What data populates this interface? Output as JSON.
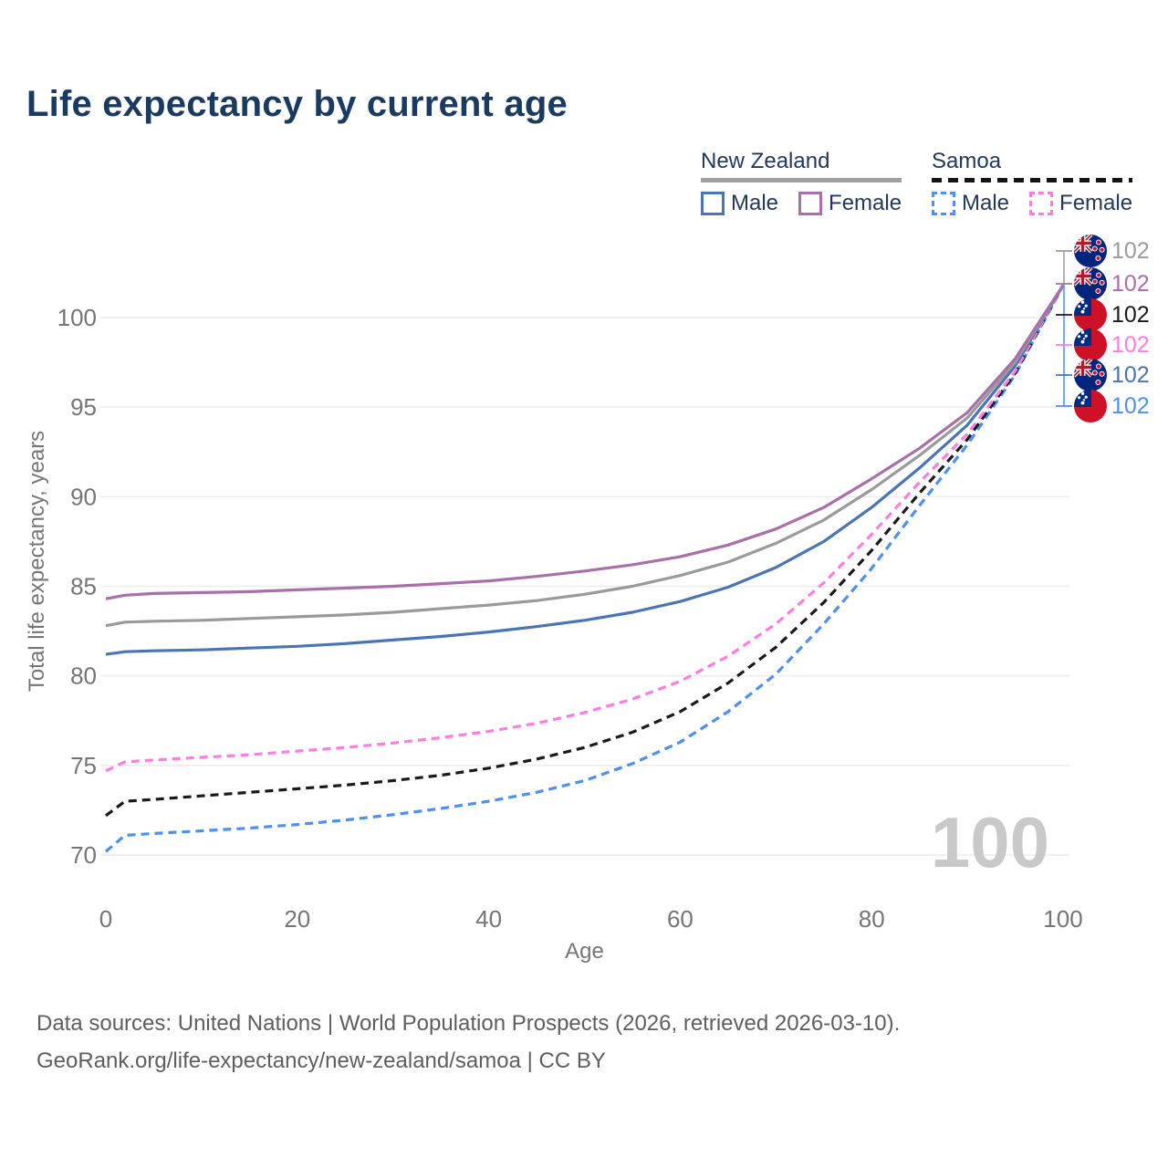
{
  "header": {
    "title": "Life expectancy by current age"
  },
  "legend": {
    "new_zealand": {
      "title": "New Zealand",
      "male": "Male",
      "female": "Female"
    },
    "samoa": {
      "title": "Samoa",
      "male": "Male",
      "female": "Female"
    }
  },
  "colors": {
    "title": "#1b3a5f",
    "axis_text": "#757575",
    "grid": "#ececec",
    "watermark": "#c9c9c9",
    "nz_male": "#4a74b4",
    "nz_female": "#a96fa9",
    "nz_all": "#9a9a9a",
    "samoa_male": "#4d8ff2",
    "samoa_female": "#ff7ddf",
    "samoa_all": "#1a1a1a",
    "nz_underline": "#a0a0a0",
    "samoa_underline": "#141414"
  },
  "chart_data": {
    "type": "line",
    "title": "Life expectancy by current age",
    "xlabel": "Age",
    "ylabel": "Total life expectancy, years",
    "x_ticks": [
      0,
      20,
      40,
      60,
      80,
      100
    ],
    "y_ticks": [
      70,
      75,
      80,
      85,
      90,
      95,
      100
    ],
    "xlim": [
      0,
      100
    ],
    "ylim": [
      69.5,
      103
    ],
    "grid": "horizontal",
    "legend_position": "top-right",
    "watermark": "100",
    "x": [
      0,
      2,
      5,
      10,
      15,
      20,
      25,
      30,
      35,
      40,
      45,
      50,
      55,
      60,
      65,
      70,
      75,
      80,
      85,
      90,
      95,
      100
    ],
    "series": [
      {
        "name": "Samoa Male",
        "country": "Samoa",
        "group": "Male",
        "dashed": true,
        "color": "#4d8ff2",
        "values": [
          70.2,
          71.1,
          71.2,
          71.35,
          71.5,
          71.7,
          71.95,
          72.25,
          72.6,
          73.0,
          73.5,
          74.15,
          75.1,
          76.3,
          78.0,
          80.1,
          82.9,
          86.0,
          89.5,
          92.9,
          96.8,
          101.8
        ]
      },
      {
        "name": "Samoa All",
        "country": "Samoa",
        "group": "All",
        "dashed": true,
        "color": "#1a1a1a",
        "values": [
          72.2,
          73.0,
          73.1,
          73.3,
          73.5,
          73.7,
          73.9,
          74.15,
          74.45,
          74.85,
          75.35,
          76.0,
          76.85,
          78.0,
          79.6,
          81.6,
          84.1,
          87.0,
          90.2,
          93.2,
          96.9,
          101.8
        ]
      },
      {
        "name": "Samoa Female",
        "country": "Samoa",
        "group": "Female",
        "dashed": true,
        "color": "#ff7ddf",
        "values": [
          74.7,
          75.2,
          75.3,
          75.45,
          75.6,
          75.8,
          76.0,
          76.25,
          76.55,
          76.9,
          77.35,
          77.95,
          78.7,
          79.7,
          81.1,
          82.9,
          85.2,
          87.9,
          90.8,
          93.5,
          97.0,
          101.8
        ]
      },
      {
        "name": "New Zealand Male",
        "country": "New Zealand",
        "group": "Male",
        "dashed": false,
        "color": "#4a74b4",
        "values": [
          81.2,
          81.35,
          81.4,
          81.45,
          81.55,
          81.65,
          81.8,
          82.0,
          82.2,
          82.45,
          82.75,
          83.1,
          83.55,
          84.15,
          84.95,
          86.05,
          87.5,
          89.4,
          91.6,
          94.0,
          97.3,
          101.8
        ]
      },
      {
        "name": "New Zealand All",
        "country": "New Zealand",
        "group": "All",
        "dashed": false,
        "color": "#9a9a9a",
        "values": [
          82.8,
          83.0,
          83.05,
          83.1,
          83.2,
          83.3,
          83.4,
          83.55,
          83.75,
          83.95,
          84.2,
          84.55,
          85.0,
          85.6,
          86.35,
          87.4,
          88.7,
          90.4,
          92.3,
          94.4,
          97.5,
          101.8
        ]
      },
      {
        "name": "New Zealand Female",
        "country": "New Zealand",
        "group": "Female",
        "dashed": false,
        "color": "#a96fa9",
        "values": [
          84.3,
          84.5,
          84.6,
          84.65,
          84.7,
          84.8,
          84.9,
          85.0,
          85.15,
          85.3,
          85.55,
          85.85,
          86.2,
          86.65,
          87.3,
          88.2,
          89.4,
          91.0,
          92.7,
          94.7,
          97.7,
          101.8
        ]
      }
    ],
    "end_labels": [
      {
        "value": "102",
        "flag": "new-zealand",
        "color": "#9a9a9a",
        "series": "New Zealand All"
      },
      {
        "value": "102",
        "flag": "new-zealand",
        "color": "#a96fa9",
        "series": "New Zealand Female"
      },
      {
        "value": "102",
        "flag": "samoa",
        "color": "#1a1a1a",
        "series": "Samoa All"
      },
      {
        "value": "102",
        "flag": "samoa",
        "color": "#ff7ddf",
        "series": "Samoa Female"
      },
      {
        "value": "102",
        "flag": "new-zealand",
        "color": "#4a74b4",
        "series": "New Zealand Male"
      },
      {
        "value": "102",
        "flag": "samoa",
        "color": "#4d8ff2",
        "series": "Samoa Male"
      }
    ]
  },
  "footer": {
    "line1": "Data sources: United Nations | World Population Prospects (2026, retrieved 2026-03-10).",
    "line2": "GeoRank.org/life-expectancy/new-zealand/samoa | CC BY"
  }
}
